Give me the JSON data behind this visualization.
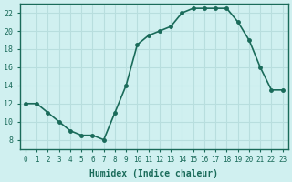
{
  "x": [
    0,
    1,
    2,
    3,
    4,
    5,
    6,
    7,
    8,
    9,
    10,
    11,
    12,
    13,
    14,
    15,
    16,
    17,
    18,
    19,
    20,
    21,
    22,
    23
  ],
  "y": [
    12,
    12,
    11,
    10,
    9,
    8.5,
    8.5,
    8,
    11,
    14,
    18.5,
    19.5,
    20,
    20.5,
    22,
    22.5,
    22.5,
    22.5,
    22.5,
    21,
    19,
    16,
    13.5,
    13.5
  ],
  "xlabel": "Humidex (Indice chaleur)",
  "line_color": "#1a6b5a",
  "marker_color": "#1a6b5a",
  "bg_color": "#d0f0f0",
  "grid_color": "#b8dede",
  "axis_color": "#1a6b5a",
  "tick_color": "#1a6b5a",
  "ylim": [
    7,
    23
  ],
  "xlim": [
    -0.5,
    23.5
  ],
  "yticks": [
    8,
    10,
    12,
    14,
    16,
    18,
    20,
    22
  ],
  "xticks": [
    0,
    1,
    2,
    3,
    4,
    5,
    6,
    7,
    8,
    9,
    10,
    11,
    12,
    13,
    14,
    15,
    16,
    17,
    18,
    19,
    20,
    21,
    22,
    23
  ]
}
